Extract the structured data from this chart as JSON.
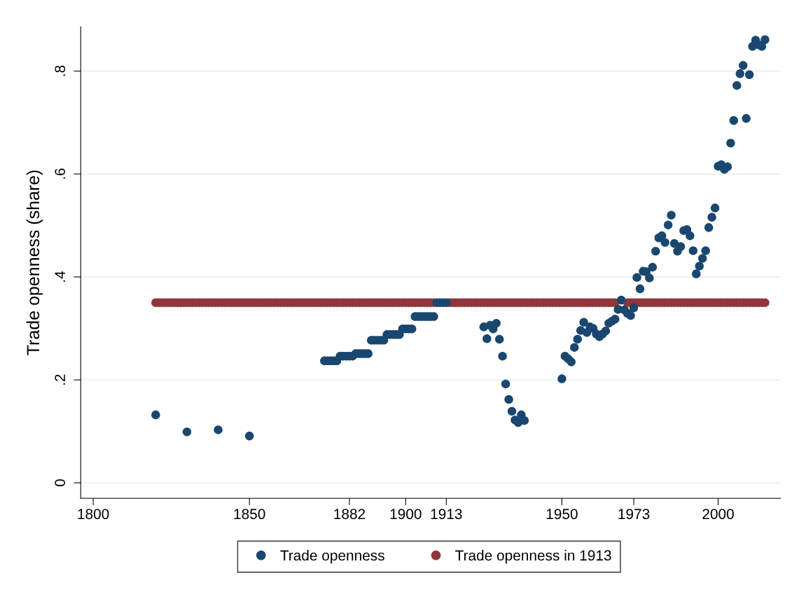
{
  "chart_data": {
    "type": "scatter",
    "ylabel": "Trade openness (share)",
    "xlim": [
      1796,
      2020
    ],
    "xticks": [
      1800,
      1850,
      1882,
      1900,
      1913,
      1950,
      1973,
      2000
    ],
    "ylim": [
      -0.03,
      0.886
    ],
    "yticks": [
      {
        "value": 0,
        "label": "0"
      },
      {
        "value": 0.2,
        "label": ".2"
      },
      {
        "value": 0.4,
        "label": ".4"
      },
      {
        "value": 0.6,
        "label": ".6"
      },
      {
        "value": 0.8,
        "label": ".8"
      }
    ],
    "grid": "y",
    "legend": "bottom",
    "marker": "circle",
    "series": [
      {
        "name": "Trade openness",
        "color": "#1a476f",
        "x": [
          1820,
          1830,
          1840,
          1850,
          1874,
          1875,
          1876,
          1877,
          1878,
          1879,
          1880,
          1881,
          1882,
          1883,
          1884,
          1885,
          1886,
          1887,
          1888,
          1889,
          1890,
          1891,
          1892,
          1893,
          1894,
          1895,
          1896,
          1897,
          1898,
          1899,
          1900,
          1901,
          1902,
          1903,
          1904,
          1905,
          1906,
          1907,
          1908,
          1909,
          1910,
          1911,
          1912,
          1913,
          1925,
          1926,
          1927,
          1928,
          1929,
          1930,
          1931,
          1932,
          1933,
          1934,
          1935,
          1936,
          1937,
          1938,
          1950,
          1951,
          1952,
          1953,
          1954,
          1955,
          1956,
          1957,
          1958,
          1959,
          1960,
          1961,
          1962,
          1963,
          1964,
          1965,
          1966,
          1967,
          1968,
          1969,
          1970,
          1971,
          1972,
          1973,
          1974,
          1975,
          1976,
          1977,
          1978,
          1979,
          1980,
          1981,
          1982,
          1983,
          1984,
          1985,
          1986,
          1987,
          1988,
          1989,
          1990,
          1991,
          1992,
          1993,
          1994,
          1995,
          1996,
          1997,
          1998,
          1999,
          2000,
          2001,
          2002,
          2003,
          2004,
          2005,
          2006,
          2007,
          2008,
          2009,
          2010,
          2011,
          2012,
          2013,
          2014,
          2015
        ],
        "values": [
          0.132,
          0.099,
          0.103,
          0.091,
          0.237,
          0.237,
          0.237,
          0.237,
          0.237,
          0.246,
          0.246,
          0.246,
          0.246,
          0.246,
          0.251,
          0.251,
          0.251,
          0.251,
          0.251,
          0.277,
          0.277,
          0.277,
          0.277,
          0.277,
          0.288,
          0.288,
          0.288,
          0.288,
          0.288,
          0.299,
          0.299,
          0.299,
          0.299,
          0.323,
          0.323,
          0.323,
          0.323,
          0.323,
          0.323,
          0.323,
          0.35,
          0.35,
          0.35,
          0.35,
          0.303,
          0.28,
          0.306,
          0.299,
          0.31,
          0.279,
          0.246,
          0.192,
          0.162,
          0.139,
          0.122,
          0.117,
          0.132,
          0.121,
          0.202,
          0.246,
          0.241,
          0.235,
          0.263,
          0.279,
          0.296,
          0.312,
          0.292,
          0.303,
          0.3,
          0.289,
          0.284,
          0.289,
          0.295,
          0.31,
          0.314,
          0.318,
          0.337,
          0.355,
          0.336,
          0.329,
          0.325,
          0.34,
          0.399,
          0.377,
          0.411,
          0.41,
          0.398,
          0.419,
          0.45,
          0.476,
          0.48,
          0.467,
          0.501,
          0.52,
          0.465,
          0.45,
          0.459,
          0.49,
          0.492,
          0.48,
          0.451,
          0.406,
          0.421,
          0.436,
          0.451,
          0.496,
          0.516,
          0.534,
          0.615,
          0.618,
          0.609,
          0.614,
          0.66,
          0.704,
          0.772,
          0.795,
          0.811,
          0.708,
          0.793,
          0.848,
          0.86,
          0.851,
          0.848,
          0.861
        ]
      },
      {
        "name": "Trade openness in 1913",
        "color": "#90353b",
        "x": [
          1820,
          1821,
          1822,
          1823,
          1824,
          1825,
          1826,
          1827,
          1828,
          1829,
          1830,
          1831,
          1832,
          1833,
          1834,
          1835,
          1836,
          1837,
          1838,
          1839,
          1840,
          1841,
          1842,
          1843,
          1844,
          1845,
          1846,
          1847,
          1848,
          1849,
          1850,
          1851,
          1852,
          1853,
          1854,
          1855,
          1856,
          1857,
          1858,
          1859,
          1860,
          1861,
          1862,
          1863,
          1864,
          1865,
          1866,
          1867,
          1868,
          1869,
          1870,
          1871,
          1872,
          1873,
          1874,
          1875,
          1876,
          1877,
          1878,
          1879,
          1880,
          1881,
          1882,
          1883,
          1884,
          1885,
          1886,
          1887,
          1888,
          1889,
          1890,
          1891,
          1892,
          1893,
          1894,
          1895,
          1896,
          1897,
          1898,
          1899,
          1900,
          1901,
          1902,
          1903,
          1904,
          1905,
          1906,
          1907,
          1908,
          1909,
          1914,
          1915,
          1916,
          1917,
          1918,
          1919,
          1920,
          1921,
          1922,
          1923,
          1924,
          1925,
          1926,
          1927,
          1928,
          1929,
          1930,
          1931,
          1932,
          1933,
          1934,
          1935,
          1936,
          1937,
          1938,
          1939,
          1940,
          1941,
          1942,
          1943,
          1944,
          1945,
          1946,
          1947,
          1948,
          1949,
          1950,
          1951,
          1952,
          1953,
          1954,
          1955,
          1956,
          1957,
          1958,
          1959,
          1960,
          1961,
          1962,
          1963,
          1964,
          1965,
          1966,
          1967,
          1971,
          1972,
          1973,
          1974,
          1975,
          1976,
          1977,
          1978,
          1979,
          1980,
          1981,
          1982,
          1983,
          1984,
          1985,
          1986,
          1987,
          1988,
          1989,
          1990,
          1991,
          1992,
          1993,
          1994,
          1995,
          1996,
          1997,
          1998,
          1999,
          2000,
          2001,
          2002,
          2003,
          2004,
          2005,
          2006,
          2007,
          2008,
          2009,
          2010,
          2011,
          2012,
          2013,
          2014,
          2015
        ],
        "values": [
          0.35,
          0.35,
          0.35,
          0.35,
          0.35,
          0.35,
          0.35,
          0.35,
          0.35,
          0.35,
          0.35,
          0.35,
          0.35,
          0.35,
          0.35,
          0.35,
          0.35,
          0.35,
          0.35,
          0.35,
          0.35,
          0.35,
          0.35,
          0.35,
          0.35,
          0.35,
          0.35,
          0.35,
          0.35,
          0.35,
          0.35,
          0.35,
          0.35,
          0.35,
          0.35,
          0.35,
          0.35,
          0.35,
          0.35,
          0.35,
          0.35,
          0.35,
          0.35,
          0.35,
          0.35,
          0.35,
          0.35,
          0.35,
          0.35,
          0.35,
          0.35,
          0.35,
          0.35,
          0.35,
          0.35,
          0.35,
          0.35,
          0.35,
          0.35,
          0.35,
          0.35,
          0.35,
          0.35,
          0.35,
          0.35,
          0.35,
          0.35,
          0.35,
          0.35,
          0.35,
          0.35,
          0.35,
          0.35,
          0.35,
          0.35,
          0.35,
          0.35,
          0.35,
          0.35,
          0.35,
          0.35,
          0.35,
          0.35,
          0.35,
          0.35,
          0.35,
          0.35,
          0.35,
          0.35,
          0.35,
          0.35,
          0.35,
          0.35,
          0.35,
          0.35,
          0.35,
          0.35,
          0.35,
          0.35,
          0.35,
          0.35,
          0.35,
          0.35,
          0.35,
          0.35,
          0.35,
          0.35,
          0.35,
          0.35,
          0.35,
          0.35,
          0.35,
          0.35,
          0.35,
          0.35,
          0.35,
          0.35,
          0.35,
          0.35,
          0.35,
          0.35,
          0.35,
          0.35,
          0.35,
          0.35,
          0.35,
          0.35,
          0.35,
          0.35,
          0.35,
          0.35,
          0.35,
          0.35,
          0.35,
          0.35,
          0.35,
          0.35,
          0.35,
          0.35,
          0.35,
          0.35,
          0.35,
          0.35,
          0.35,
          0.35,
          0.35,
          0.35,
          0.35,
          0.35,
          0.35,
          0.35,
          0.35,
          0.35,
          0.35,
          0.35,
          0.35,
          0.35,
          0.35,
          0.35,
          0.35,
          0.35,
          0.35,
          0.35,
          0.35,
          0.35,
          0.35,
          0.35,
          0.35,
          0.35,
          0.35,
          0.35,
          0.35,
          0.35,
          0.35,
          0.35,
          0.35,
          0.35,
          0.35,
          0.35,
          0.35,
          0.35,
          0.35,
          0.35,
          0.35,
          0.35,
          0.35,
          0.35,
          0.35,
          0.35
        ]
      }
    ]
  }
}
